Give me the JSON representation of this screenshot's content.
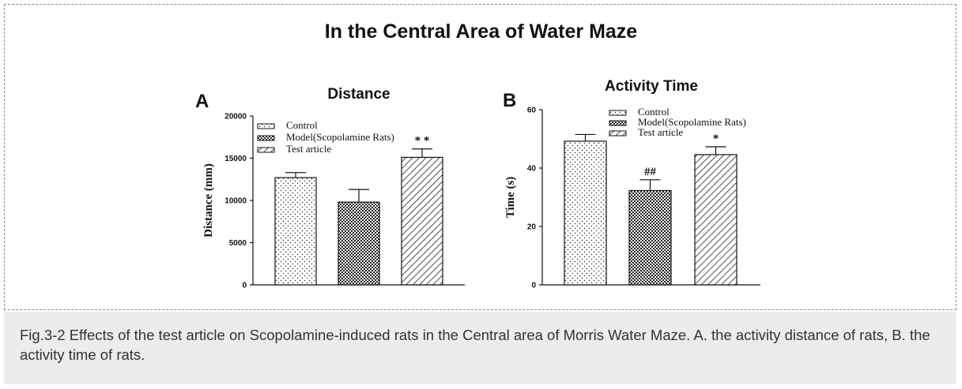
{
  "figure": {
    "title": "In the Central Area of Water Maze",
    "caption": "Fig.3-2 Effects of the test article on Scopolamine-induced rats in the Central area of Morris Water Maze. A. the activity distance of rats, B. the activity time of rats."
  },
  "chart_data": [
    {
      "type": "bar",
      "panel_letter": "A",
      "title": "Distance",
      "xlabel": "",
      "ylabel": "Distance (mm)",
      "ylim": [
        0,
        20000
      ],
      "yticks": [
        0,
        5000,
        10000,
        15000,
        20000
      ],
      "categories": [
        "Control",
        "Model(Scopolamine Rats)",
        "Test article"
      ],
      "values": [
        12700,
        9800,
        15100
      ],
      "errors": [
        600,
        1500,
        1000
      ],
      "annotations": [
        "",
        "",
        "* *"
      ],
      "legend": [
        "Control",
        "Model(Scopolamine Rats)",
        "Test article"
      ],
      "legend_position": "top-left",
      "grid": false
    },
    {
      "type": "bar",
      "panel_letter": "B",
      "title": "Activity Time",
      "xlabel": "",
      "ylabel": "Time (s)",
      "ylim": [
        0,
        60
      ],
      "yticks": [
        0,
        20,
        40,
        60
      ],
      "categories": [
        "Control",
        "Model(Scopolamine Rats)",
        "Test article"
      ],
      "values": [
        49.2,
        32.3,
        44.6
      ],
      "errors": [
        2.3,
        3.7,
        2.7
      ],
      "annotations": [
        "",
        "##",
        "*"
      ],
      "legend": [
        "Control",
        "Model(Scopolamine Rats)",
        "Test article"
      ],
      "legend_position": "top-center",
      "grid": false
    }
  ]
}
